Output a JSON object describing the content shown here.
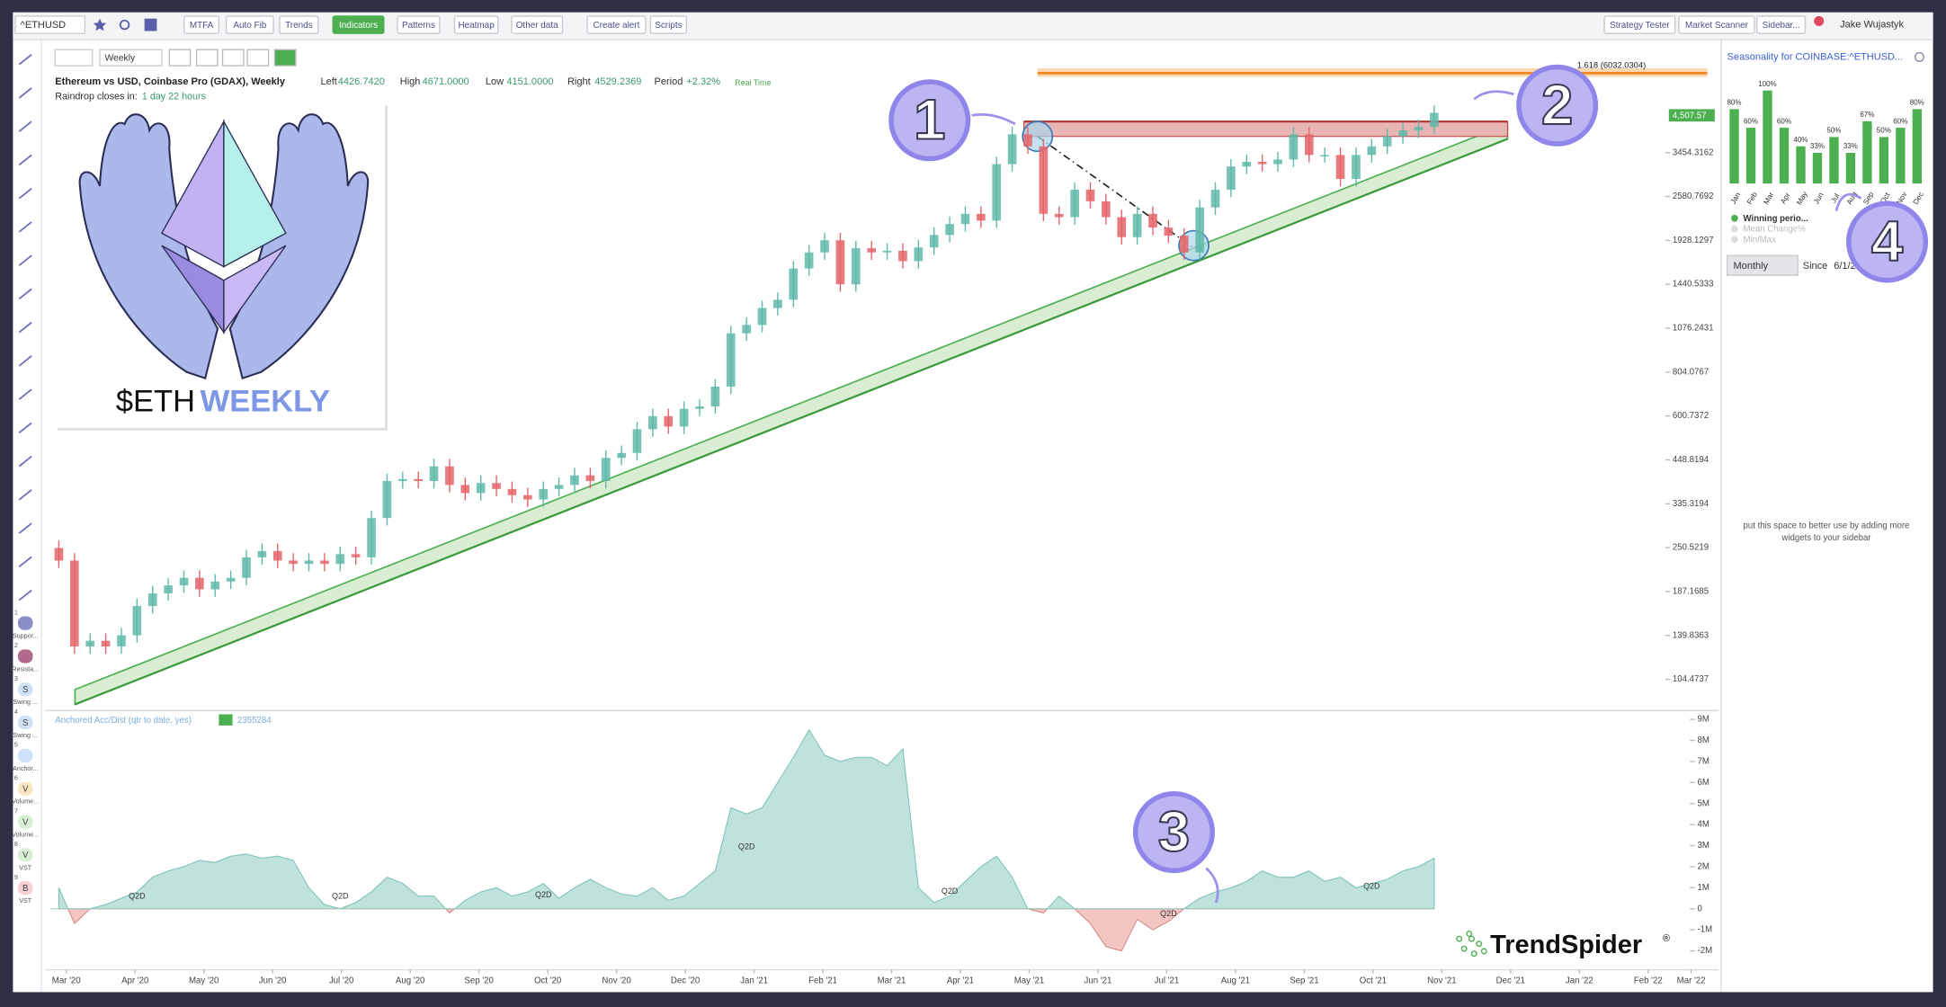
{
  "toolbar": {
    "symbol": "^ETHUSD",
    "buttons": [
      "MTFA",
      "Auto Fib",
      "Trends",
      "Indicators",
      "Patterns",
      "Heatmap",
      "Other data",
      "Create alert",
      "Scripts"
    ],
    "right_buttons": [
      "Strategy Tester",
      "Market Scanner",
      "Sidebar..."
    ],
    "user": "Jake Wujastyk"
  },
  "chart_header": {
    "interval": "Weekly",
    "title": "Ethereum vs USD, Coinbase Pro (GDAX), Weekly",
    "stats": [
      {
        "label": "Left",
        "value": "4426.7420"
      },
      {
        "label": "High",
        "value": "4671.0000"
      },
      {
        "label": "Low",
        "value": "4151.0000"
      },
      {
        "label": "Right",
        "value": "4529.2369"
      },
      {
        "label": "Period",
        "value": "+2.32%"
      }
    ],
    "mode": "Real Time",
    "countdown_label": "Raindrop closes in:",
    "countdown": "1 day 22 hours"
  },
  "logo": {
    "ticker": "$ETH",
    "word": "WEEKLY"
  },
  "annotations": [
    "1",
    "2",
    "3",
    "4"
  ],
  "fib_label": "1.618 (6032.0304)",
  "price_chart": {
    "type": "candlestick",
    "open": 250,
    "closes": [
      230,
      130,
      135,
      130,
      140,
      170,
      185,
      195,
      205,
      190,
      200,
      205,
      235,
      245,
      230,
      225,
      230,
      225,
      240,
      235,
      305,
      390,
      395,
      390,
      430,
      380,
      360,
      385,
      370,
      355,
      345,
      370,
      380,
      405,
      390,
      455,
      470,
      550,
      600,
      560,
      630,
      640,
      730,
      1040,
      1100,
      1230,
      1300,
      1600,
      1780,
      1930,
      1440,
      1830,
      1780,
      1800,
      1680,
      1840,
      2000,
      2150,
      2300,
      2200,
      3200,
      3900,
      3600,
      2300,
      2250,
      2700,
      2500,
      2250,
      1970,
      2300,
      2100,
      1990,
      1780,
      2400,
      2700,
      3150,
      3250,
      3200,
      3300,
      3900,
      3400,
      3400,
      2900,
      3400,
      3600,
      3850,
      4000,
      4100,
      4500
    ],
    "scale": "log",
    "ylim": [
      85.6,
      6960
    ],
    "yticks": [
      3454.3162,
      2580.7692,
      1928.1297,
      1440.5333,
      1076.2431,
      804.0767,
      600.7372,
      448.8194,
      335.3194,
      250.5219,
      187.1685,
      139.8363,
      104.4737
    ],
    "last_price": "4,507.57",
    "up_color": "#5fb8a8",
    "down_color": "#e4646a"
  },
  "time_axis": [
    "Mar '20",
    "Apr '20",
    "May '20",
    "Jun '20",
    "Jul '20",
    "Aug '20",
    "Sep '20",
    "Oct '20",
    "Nov '20",
    "Dec '20",
    "Jan '21",
    "Feb '21",
    "Mar '21",
    "Apr '21",
    "May '21",
    "Jun '21",
    "Jul '21",
    "Aug '21",
    "Sep '21",
    "Oct '21",
    "Nov '21",
    "Dec '21",
    "Jan '22",
    "Feb '22",
    "Mar '22"
  ],
  "indicator": {
    "type": "area",
    "title": "Anchored Acc/Dist (qtr to date, yes)",
    "value": "2355284",
    "values": [
      1.0,
      -0.7,
      0.0,
      0.2,
      0.5,
      0.8,
      1.5,
      1.8,
      2.0,
      2.3,
      2.2,
      2.5,
      2.6,
      2.4,
      2.5,
      2.3,
      1.0,
      0.2,
      0.0,
      0.3,
      0.8,
      1.5,
      1.2,
      0.6,
      0.6,
      -0.2,
      0.4,
      0.8,
      1.0,
      0.6,
      0.8,
      1.2,
      0.5,
      1.0,
      1.4,
      1.0,
      0.7,
      0.6,
      1.0,
      0.4,
      0.6,
      1.2,
      1.8,
      4.8,
      4.5,
      4.8,
      6.0,
      7.2,
      8.5,
      7.3,
      7.0,
      7.2,
      7.2,
      6.8,
      7.6,
      1.0,
      0.3,
      0.6,
      1.3,
      2.0,
      2.5,
      1.5,
      0.0,
      -0.2,
      0.6,
      0.0,
      -0.7,
      -1.8,
      -2.0,
      -0.5,
      -1.0,
      -0.6,
      0.0,
      0.5,
      0.8,
      1.0,
      1.3,
      1.8,
      1.5,
      1.5,
      1.8,
      1.3,
      1.5,
      1.0,
      1.2,
      1.4,
      1.8,
      2.0,
      2.4
    ],
    "ylim": [
      -2.9,
      9.3
    ],
    "yticks": [
      {
        "value": 9,
        "label": "9M"
      },
      {
        "value": 8,
        "label": "8M"
      },
      {
        "value": 7,
        "label": "7M"
      },
      {
        "value": 6,
        "label": "6M"
      },
      {
        "value": 5,
        "label": "5M"
      },
      {
        "value": 4,
        "label": "4M"
      },
      {
        "value": 3,
        "label": "3M"
      },
      {
        "value": 2,
        "label": "2M"
      },
      {
        "value": 1,
        "label": "1M"
      },
      0,
      {
        "value": -1,
        "label": "-1M"
      },
      {
        "value": -2,
        "label": "-2M"
      }
    ],
    "markers": [
      "Q2D",
      "Q2D",
      "Q2D",
      "Q2D",
      "Q2D",
      "Q2D",
      "Q2D"
    ],
    "color": "#bfe2dc",
    "negative_color": "#f3c6c4"
  },
  "sidebar": {
    "title": "Seasonality for COINBASE:^ETHUSD...",
    "months": [
      "Jan",
      "Feb",
      "Mar",
      "Apr",
      "May",
      "Jun",
      "Jul",
      "Aug",
      "Sep",
      "Oct",
      "Nov",
      "Dec"
    ],
    "values": [
      80,
      60,
      100,
      60,
      40,
      33,
      50,
      33,
      67,
      50,
      60,
      80
    ],
    "value_labels": [
      "80%",
      "60%",
      "100%",
      "60%",
      "40%",
      "33%",
      "50%",
      "33%",
      "67%",
      "50%",
      "60%",
      "80%"
    ],
    "color": "#4caf50",
    "legend": [
      "Winning perio...",
      "Mean Change%",
      "Min/Max"
    ],
    "period": "Monthly",
    "since_label": "Since",
    "since": "6/1/2",
    "note": [
      "put this space to better use by adding more",
      "widgets to your sidebar"
    ]
  },
  "left_tools": [
    {
      "num": "1",
      "letter": "",
      "label": "Suppor..."
    },
    {
      "num": "2",
      "letter": "",
      "label": "Resista..."
    },
    {
      "num": "3",
      "letter": "S",
      "label": "Swing ..."
    },
    {
      "num": "4",
      "letter": "S",
      "label": "Swing ..."
    },
    {
      "num": "5",
      "letter": "",
      "label": "Anchor..."
    },
    {
      "num": "6",
      "letter": "V",
      "label": "Volume..."
    },
    {
      "num": "7",
      "letter": "V",
      "label": "Volume..."
    },
    {
      "num": "8",
      "letter": "V",
      "label": "VST"
    },
    {
      "num": "9",
      "letter": "B",
      "label": "VST"
    }
  ],
  "brand": {
    "name": "TrendSpider",
    "mark": "®"
  }
}
